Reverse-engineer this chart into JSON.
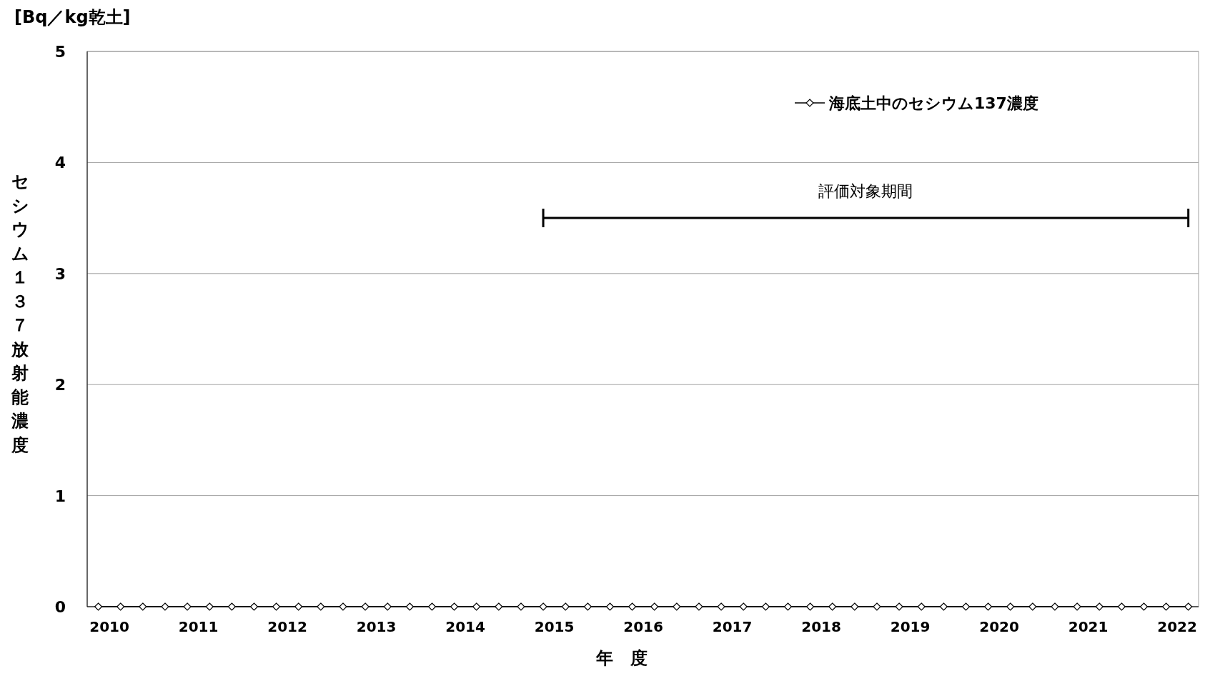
{
  "chart_data": {
    "type": "line",
    "xlabel": "年　度",
    "ylabel": "セシウム１３７放射能濃度",
    "x": [
      2009.875,
      2010.125,
      2010.375,
      2010.625,
      2010.875,
      2011.125,
      2011.375,
      2011.625,
      2011.875,
      2012.125,
      2012.375,
      2012.625,
      2012.875,
      2013.125,
      2013.375,
      2013.625,
      2013.875,
      2014.125,
      2014.375,
      2014.625,
      2014.875,
      2015.125,
      2015.375,
      2015.625,
      2015.875,
      2016.125,
      2016.375,
      2016.625,
      2016.875,
      2017.125,
      2017.375,
      2017.625,
      2017.875,
      2018.125,
      2018.375,
      2018.625,
      2018.875,
      2019.125,
      2019.375,
      2019.625,
      2019.875,
      2020.125,
      2020.375,
      2020.625,
      2020.875,
      2021.125,
      2021.375,
      2021.625,
      2021.875,
      2022.125
    ],
    "series": [
      {
        "name": "海底土中のセシウム137濃度",
        "color": "#000000",
        "marker": "diamond",
        "values": [
          0,
          0,
          0,
          0,
          0,
          0,
          0,
          0,
          0,
          0,
          0,
          0,
          0,
          0,
          0,
          0,
          0,
          0,
          0,
          0,
          0,
          0,
          0,
          0,
          0,
          0,
          0,
          0,
          0,
          0,
          0,
          0,
          0,
          0,
          0,
          0,
          0,
          0,
          0,
          0,
          0,
          0,
          0,
          0,
          0,
          0,
          0,
          0,
          0,
          0
        ]
      },
      {
        "type": "line",
        "color": "#000000",
        "marker": "none",
        "x": [
          2014.875,
          2022.125
        ],
        "values": [
          3.5,
          3.5
        ]
      }
    ],
    "annotations": [
      "[Bq／kg乾土]",
      {
        "text": "評価対象期間",
        "x": 2018.5,
        "y": 3.5
      }
    ],
    "xlim": [
      2009.75,
      2022.24
    ],
    "xticks": [
      2010,
      2011,
      2012,
      2013,
      2014,
      2015,
      2016,
      2017,
      2018,
      2019,
      2020,
      2021,
      2022
    ],
    "ylim": [
      0,
      5
    ],
    "yticks": [
      0,
      1,
      2,
      3,
      4,
      5
    ],
    "grid": "y",
    "legend": "top right"
  }
}
